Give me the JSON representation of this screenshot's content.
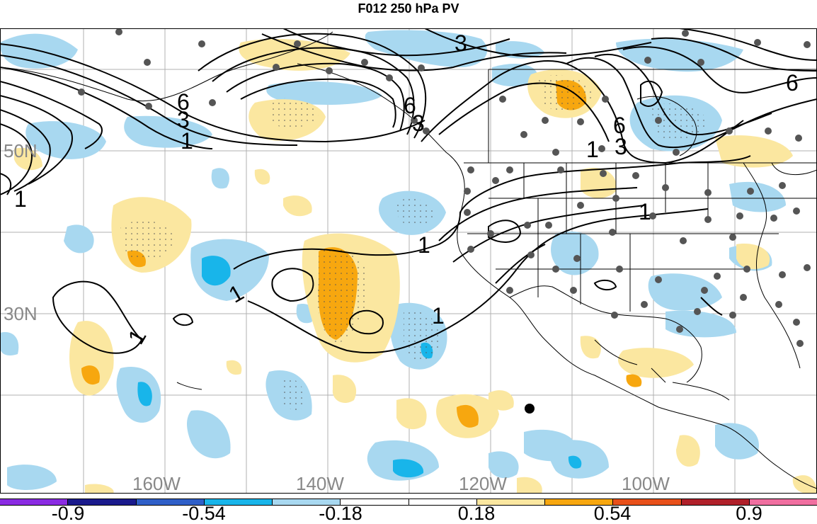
{
  "title": "F012 250 hPa PV",
  "colors": {
    "positive_light": "#fbe7a0",
    "positive_mid": "#f7a70f",
    "negative_light": "#a8d8f0",
    "negative_mid": "#18b5ea",
    "station": "#555555",
    "contour": "#000000",
    "gridline": "#b0b0b0",
    "border": "#000000"
  },
  "gridlabels": {
    "lat_50": "50N",
    "lat_30": "30N",
    "lon_160": "160W",
    "lon_140": "140W",
    "lon_120": "120W",
    "lon_100": "100W"
  },
  "contour_labels": [
    "1",
    "1",
    "1",
    "1",
    "1",
    "1",
    "1",
    "1",
    "3",
    "3",
    "3",
    "3",
    "6",
    "6",
    "6",
    "6"
  ],
  "colorbar": {
    "colors": [
      "#8a2be2",
      "#1a1a8c",
      "#2f5fc8",
      "#18b5ea",
      "#a8d8f0",
      "#ffffff",
      "#ffffff",
      "#fbe7a0",
      "#f7a70f",
      "#e8501a",
      "#b0202a",
      "#f06fa0"
    ],
    "labels": [
      "-0.9",
      "-0.54",
      "-0.18",
      "0.18",
      "0.54",
      "0.9"
    ]
  }
}
